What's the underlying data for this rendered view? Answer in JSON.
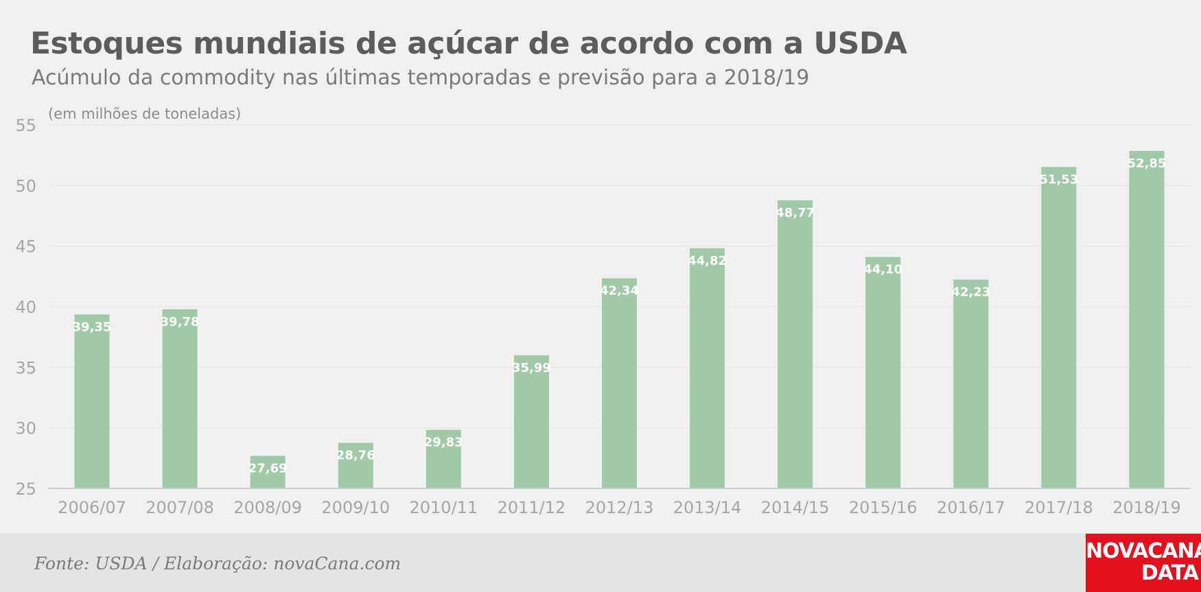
{
  "header": {
    "title": "Estoques mundiais de açúcar de acordo com a USDA",
    "subtitle": "Acúmulo da commodity nas últimas temporadas e previsão para a 2018/19"
  },
  "footer": {
    "source": "Fonte: USDA / Elaboração: novaCana.com",
    "logo_line1": "NOVACANA",
    "logo_line2": "DATA"
  },
  "colors": {
    "bar": "#a0c9a8",
    "logo_bg": "#e3111d",
    "background": "#f0f0f0"
  },
  "chart_data": {
    "type": "bar",
    "unit_label": "(em milhões de toneladas)",
    "categories": [
      "2006/07",
      "2007/08",
      "2008/09",
      "2009/10",
      "2010/11",
      "2011/12",
      "2012/13",
      "2013/14",
      "2014/15",
      "2015/16",
      "2016/17",
      "2017/18",
      "2018/19"
    ],
    "values": [
      39.35,
      39.78,
      27.69,
      28.76,
      29.83,
      35.99,
      42.34,
      44.82,
      48.77,
      44.1,
      42.23,
      51.53,
      52.85
    ],
    "value_labels": [
      "39,35",
      "39,78",
      "27,69",
      "28,76",
      "29,83",
      "35,99",
      "42,34",
      "44,82",
      "48,77",
      "44,10",
      "42,23",
      "51,53",
      "52,85"
    ],
    "y_ticks": [
      25,
      30,
      35,
      40,
      45,
      50,
      55
    ],
    "ylim": [
      25,
      55
    ],
    "grid": true
  }
}
